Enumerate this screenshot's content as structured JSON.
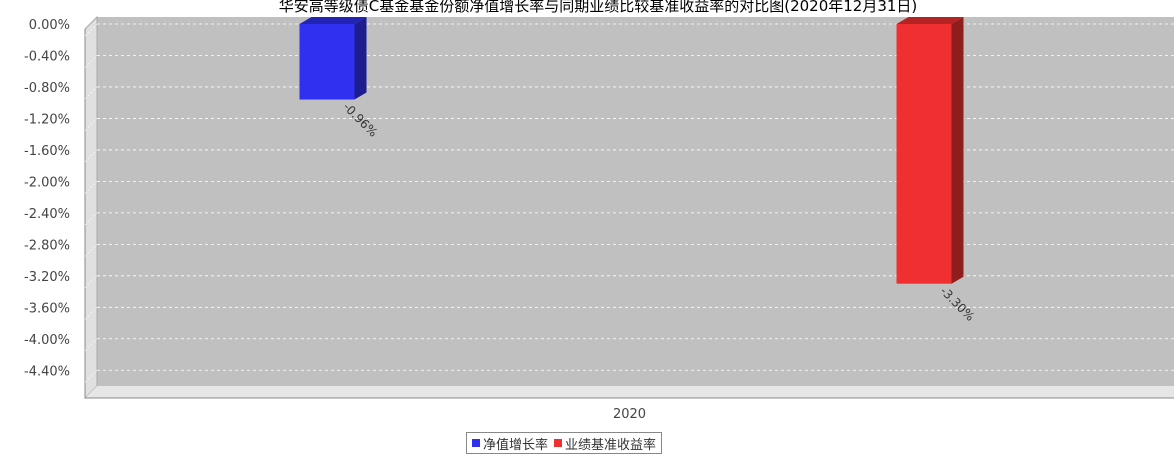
{
  "chart_data": {
    "type": "bar",
    "title": "华安高等级债C基金基金份额净值增长率与同期业绩比较基准收益率的对比图(2020年12月31日)",
    "xlabel": "",
    "ylabel": "",
    "categories": [
      "2020"
    ],
    "ylim": [
      -4.6,
      0
    ],
    "yticks": [
      0,
      -0.4,
      -0.8,
      -1.2,
      -1.6,
      -2.0,
      -2.4,
      -2.8,
      -3.2,
      -3.6,
      -4.0,
      -4.4
    ],
    "ytick_labels": [
      "0.00%",
      "-0.40%",
      "-0.80%",
      "-1.20%",
      "-1.60%",
      "-2.00%",
      "-2.40%",
      "-2.80%",
      "-3.20%",
      "-3.60%",
      "-4.00%",
      "-4.40%"
    ],
    "grid": true,
    "legend_position": "bottom",
    "series": [
      {
        "name": "净值增长率",
        "values": [
          -0.96
        ],
        "label": "-0.96%",
        "color": "#3030f0"
      },
      {
        "name": "业绩基准收益率",
        "values": [
          -3.3
        ],
        "label": "-3.30%",
        "color": "#f03030"
      }
    ]
  }
}
